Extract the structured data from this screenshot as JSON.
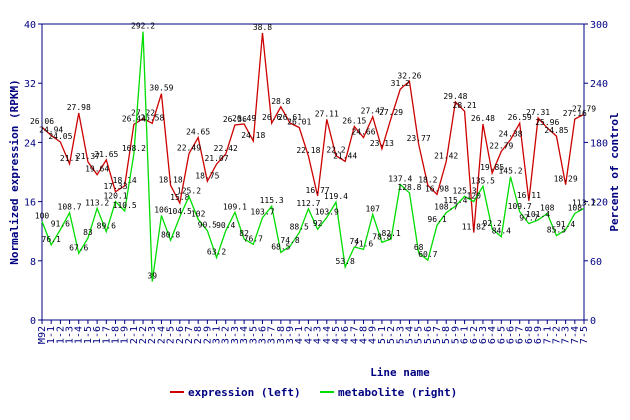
{
  "chart_data": {
    "type": "line",
    "x_label": "Line name",
    "y_label": "Normalized expression (RPKM)",
    "y2_label": "Percent of control",
    "categories": [
      "M92",
      "1-1",
      "1-2",
      "1-3",
      "1-4",
      "1-5",
      "1-6",
      "1-7",
      "1-8",
      "1-9",
      "2-1",
      "2-2",
      "2-3",
      "2-4",
      "2-5",
      "2-6",
      "2-7",
      "2-8",
      "2-9",
      "3-1",
      "3-2",
      "3-3",
      "3-4",
      "3-5",
      "3-6",
      "3-7",
      "3-8",
      "3-9",
      "4-1",
      "4-2",
      "4-3",
      "4-4",
      "4-5",
      "4-6",
      "4-7",
      "4-8",
      "4-9",
      "5-1",
      "5-2",
      "5-3",
      "5-4",
      "5-5",
      "5-6",
      "5-7",
      "5-8",
      "5-9",
      "6-1",
      "6-2",
      "6-3",
      "6-4",
      "6-5",
      "6-6",
      "6-7",
      "6-8",
      "6-9",
      "7-1",
      "7-2",
      "7-3",
      "7-4",
      "7-5"
    ],
    "series": [
      {
        "name": "expression (left)",
        "color": "#cc0000",
        "axis": "y",
        "values": [
          26.06,
          24.94,
          24.05,
          21.1,
          27.98,
          21.37,
          19.64,
          21.65,
          17.33,
          18.14,
          26.44,
          27.22,
          26.58,
          30.59,
          18.18,
          15.8,
          22.49,
          24.65,
          18.75,
          21.07,
          22.42,
          26.36,
          26.49,
          24.18,
          38.8,
          26.6,
          28.8,
          26.61,
          26.01,
          22.18,
          16.77,
          27.11,
          22.2,
          21.44,
          26.15,
          24.66,
          27.47,
          23.13,
          27.29,
          31.2,
          32.26,
          23.77,
          18.2,
          16.98,
          21.42,
          29.48,
          28.21,
          11.82,
          26.48,
          19.85,
          22.79,
          24.38,
          26.59,
          16.11,
          27.31,
          25.96,
          24.85,
          18.29,
          27.16,
          27.79
        ]
      },
      {
        "name": "metabolite (right)",
        "color": "#00dd00",
        "axis": "y2",
        "values": [
          100,
          76.1,
          91.6,
          108.7,
          67.6,
          83,
          113.2,
          89.6,
          120.1,
          110.5,
          168.2,
          292.2,
          39,
          106,
          80.8,
          104.5,
          125.2,
          102,
          90.5,
          63.2,
          90.4,
          109.1,
          82,
          76.7,
          103.7,
          115.3,
          68.5,
          74.8,
          88.5,
          112.7,
          92,
          103.9,
          119.4,
          53.8,
          74,
          71.6,
          107,
          78.8,
          82.1,
          137.4,
          128.8,
          68,
          60.7,
          96.1,
          108.7,
          115.4,
          125.3,
          120,
          135.5,
          92.2,
          84.4,
          145.2,
          109.7,
          97.7,
          101.4,
          108,
          85.5,
          91.4,
          108,
          113.2
        ]
      }
    ],
    "ylim": [
      0,
      40
    ],
    "yticks": [
      0,
      8,
      16,
      24,
      32,
      40
    ],
    "y2lim": [
      0,
      300
    ],
    "y2ticks": [
      0,
      60,
      120,
      180,
      240,
      300
    ],
    "legend": "bottom"
  }
}
